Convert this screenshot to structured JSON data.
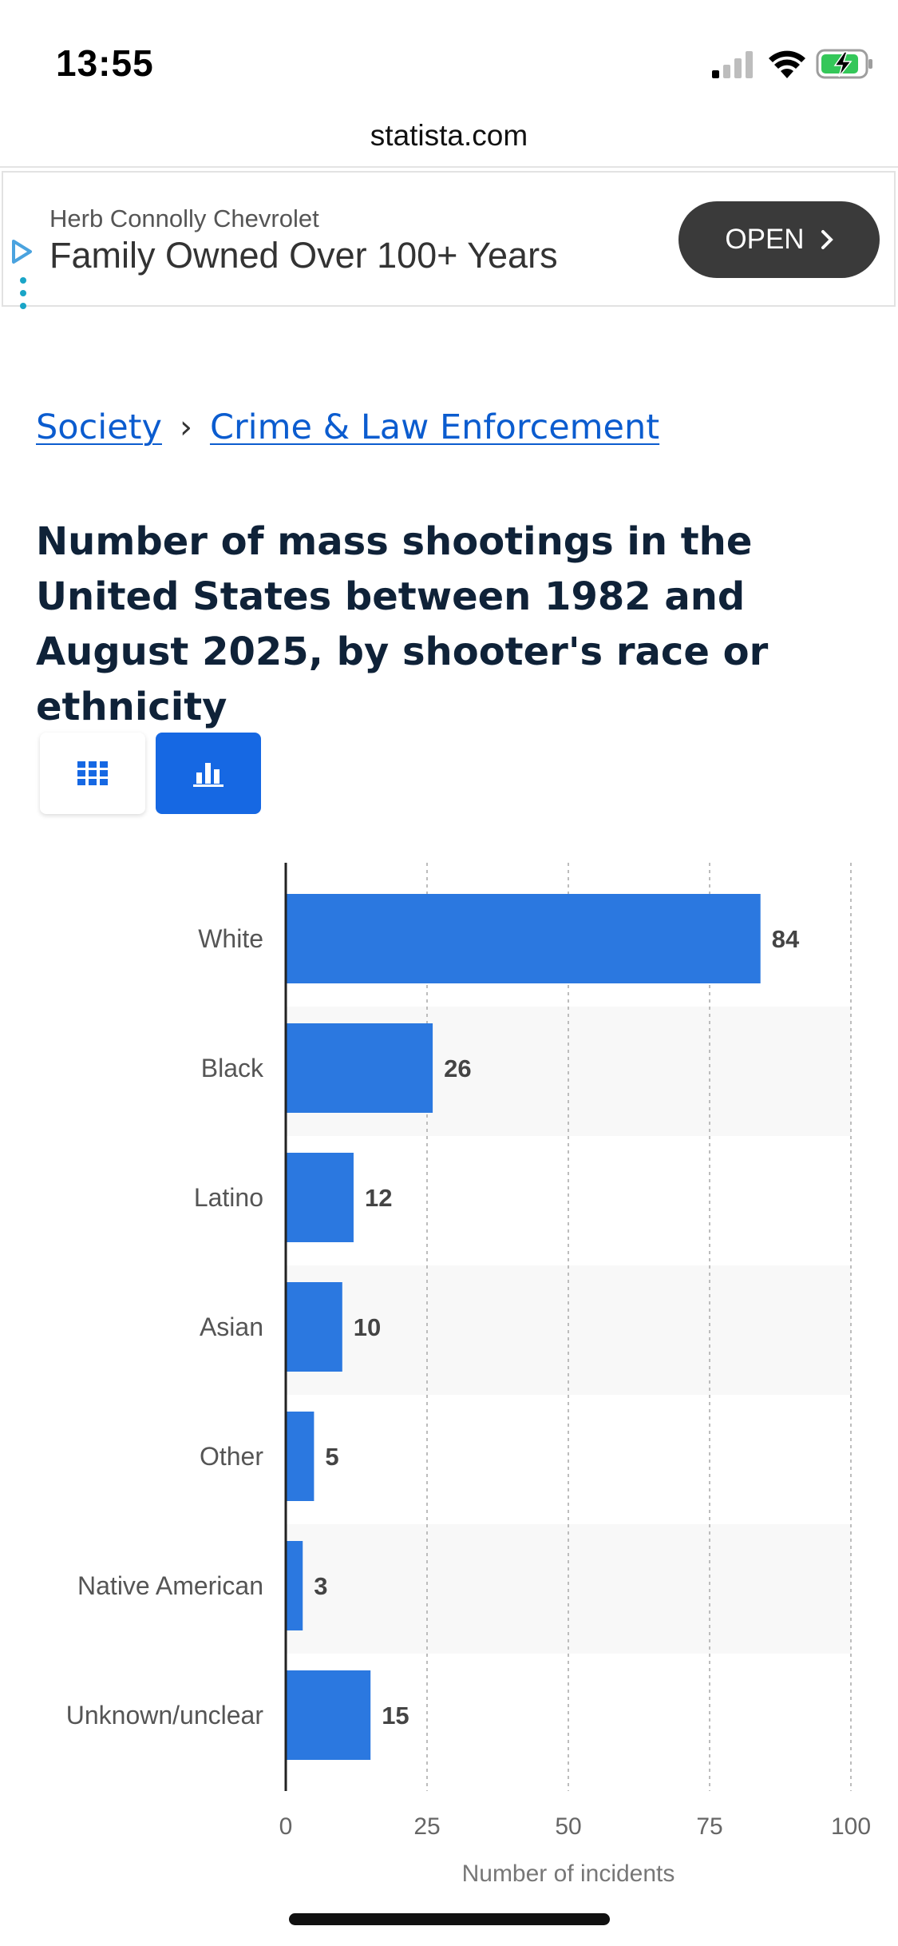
{
  "status_bar": {
    "time": "13:55"
  },
  "browser": {
    "url": "statista.com"
  },
  "ad": {
    "advertiser": "Herb Connolly Chevrolet",
    "headline": "Family Owned Over 100+ Years",
    "cta": "OPEN"
  },
  "breadcrumb": {
    "items": [
      "Society",
      "Crime & Law Enforcement"
    ],
    "separator": "›"
  },
  "title": "Number of mass shootings in the United States between 1982 and August 2025, by shooter's race or ethnicity",
  "view_toggle": {
    "options": [
      "table",
      "chart"
    ],
    "selected": "chart"
  },
  "colors": {
    "bar": "#2b78e0",
    "accent": "#1668e3",
    "link": "#0b5ccf",
    "band": "#f8f8f8"
  },
  "chart_data": {
    "type": "bar",
    "orientation": "horizontal",
    "categories": [
      "White",
      "Black",
      "Latino",
      "Asian",
      "Other",
      "Native American",
      "Unknown/unclear"
    ],
    "values": [
      84,
      26,
      12,
      10,
      5,
      3,
      15
    ],
    "xlabel": "Number of incidents",
    "xlim": [
      0,
      100
    ],
    "xticks": [
      0,
      25,
      50,
      75,
      100
    ],
    "grid": "vertical-dotted"
  }
}
